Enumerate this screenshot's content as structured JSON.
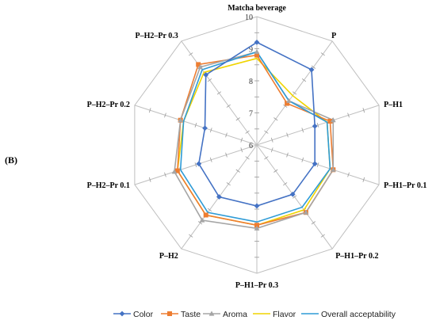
{
  "panel_label": "(B)",
  "chart_data": {
    "type": "radar",
    "axes": [
      "Matcha beverage",
      "P",
      "P–H1",
      "P–H1–Pr 0.1",
      "P–H1–Pr 0.2",
      "P–H1–Pr 0.3",
      "P–H2",
      "P–H2–Pr 0.1",
      "P–H2–Pr 0.2",
      "P–H2–Pr 0.3"
    ],
    "rlim": [
      6,
      10
    ],
    "ticks": [
      6,
      7,
      8,
      9,
      10
    ],
    "grid": true,
    "legend_position": "bottom",
    "series": [
      {
        "name": "Color",
        "color": "#4472C4",
        "marker": "diamond",
        "values": [
          9.2,
          8.9,
          7.9,
          7.9,
          7.9,
          7.9,
          8.0,
          7.9,
          7.7,
          8.7
        ]
      },
      {
        "name": "Taste",
        "color": "#ED7D31",
        "marker": "square",
        "values": [
          8.8,
          7.6,
          8.4,
          8.5,
          8.6,
          8.5,
          8.7,
          8.6,
          8.5,
          9.1
        ]
      },
      {
        "name": "Aroma",
        "color": "#A5A5A5",
        "marker": "triangle",
        "values": [
          8.9,
          7.7,
          8.5,
          8.5,
          8.6,
          8.6,
          8.9,
          8.7,
          8.5,
          9.0
        ]
      },
      {
        "name": "Flavor",
        "color": "#F0D400",
        "marker": "none",
        "values": [
          8.7,
          7.9,
          8.3,
          8.4,
          8.5,
          8.5,
          8.7,
          8.6,
          8.4,
          8.8
        ]
      },
      {
        "name": "Overall acceptability",
        "color": "#2E9BD6",
        "marker": "none",
        "values": [
          8.9,
          7.7,
          8.3,
          8.4,
          8.4,
          8.4,
          8.6,
          8.5,
          8.4,
          8.9
        ]
      }
    ]
  }
}
